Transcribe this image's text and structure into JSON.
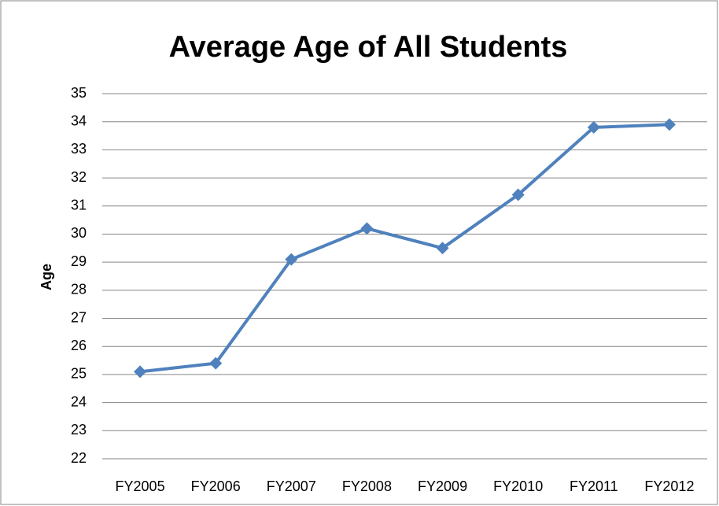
{
  "chart_data": {
    "type": "line",
    "title": "Average Age of All Students",
    "y_label": "Age",
    "categories": [
      "FY2005",
      "FY2006",
      "FY2007",
      "FY2008",
      "FY2009",
      "FY2010",
      "FY2011",
      "FY2012"
    ],
    "series": [
      {
        "name": "Average Age",
        "color": "#4f81bd",
        "values": [
          25.1,
          25.4,
          29.1,
          30.2,
          29.5,
          31.4,
          33.8,
          33.9
        ]
      }
    ],
    "ylim": [
      22,
      35
    ],
    "yticks": [
      22,
      23,
      24,
      25,
      26,
      27,
      28,
      29,
      30,
      31,
      32,
      33,
      34,
      35
    ],
    "grid": true
  }
}
